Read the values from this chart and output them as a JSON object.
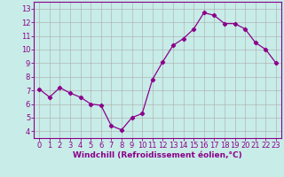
{
  "x": [
    0,
    1,
    2,
    3,
    4,
    5,
    6,
    7,
    8,
    9,
    10,
    11,
    12,
    13,
    14,
    15,
    16,
    17,
    18,
    19,
    20,
    21,
    22,
    23
  ],
  "y": [
    7.1,
    6.5,
    7.2,
    6.8,
    6.5,
    6.0,
    5.9,
    4.4,
    4.1,
    5.0,
    5.3,
    7.8,
    9.1,
    10.3,
    10.8,
    11.5,
    12.7,
    12.5,
    11.9,
    11.9,
    11.5,
    10.5,
    10.0,
    9.0
  ],
  "line_color": "#8B008B",
  "marker": "D",
  "marker_size": 2.2,
  "bg_color": "#C8ECE8",
  "grid_color": "#AAAAAA",
  "xlabel": "Windchill (Refroidissement éolien,°C)",
  "ylim": [
    3.5,
    13.5
  ],
  "yticks": [
    4,
    5,
    6,
    7,
    8,
    9,
    10,
    11,
    12,
    13
  ],
  "xlim": [
    -0.5,
    23.5
  ],
  "xticks": [
    0,
    1,
    2,
    3,
    4,
    5,
    6,
    7,
    8,
    9,
    10,
    11,
    12,
    13,
    14,
    15,
    16,
    17,
    18,
    19,
    20,
    21,
    22,
    23
  ],
  "label_fontsize": 6.5,
  "tick_fontsize": 6.0,
  "spine_color": "#8B008B",
  "bottom_bar_color": "#8B008B"
}
